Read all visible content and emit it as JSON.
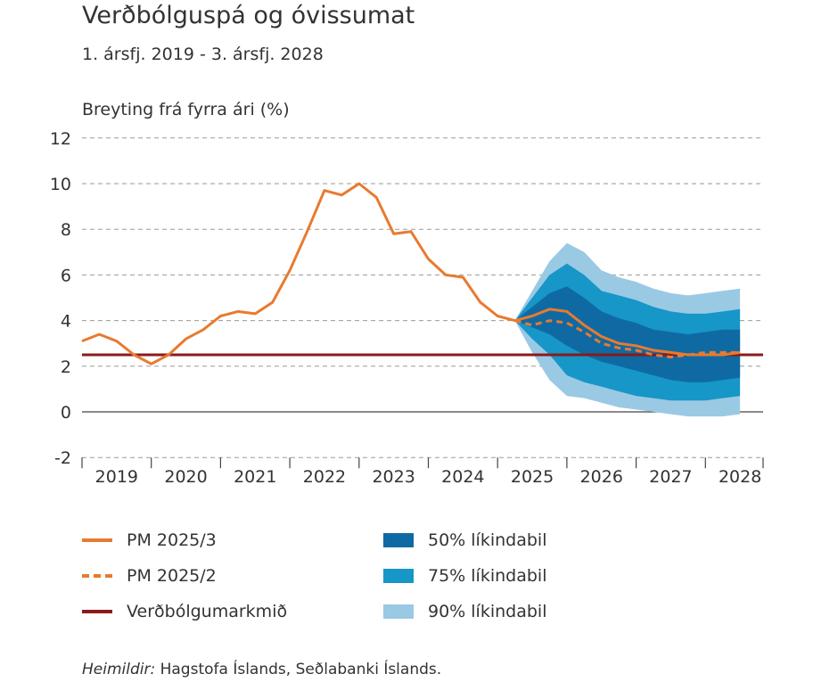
{
  "title": "Verðbólguspá og óvissumat",
  "subtitle": "1. ársfj. 2019 - 3. ársfj. 2028",
  "source": {
    "prefix": "Heimildir:",
    "text": " Hagstofa Íslands, Seðlabanki Íslands."
  },
  "legend": {
    "pm3": "PM 2025/3",
    "pm2": "PM 2025/2",
    "target": "Verðbólgumarkmið",
    "b50": "50% líkindabil",
    "b75": "75% líkindabil",
    "b90": "90% líkindabil"
  },
  "colors": {
    "pm": "#e87a30",
    "target": "#8b1a1a",
    "band50": "#0f6aa3",
    "band75": "#1796c8",
    "band90": "#9ac9e3",
    "grid": "#9a9a9a",
    "axis": "#444444"
  },
  "chart_data": {
    "type": "line",
    "ylabel": "Breyting frá fyrra ári (%)",
    "ylim": [
      -2,
      12
    ],
    "yticks": [
      -2,
      0,
      2,
      4,
      6,
      8,
      10,
      12
    ],
    "grid": true,
    "x_axis": {
      "start_year": 2019,
      "years": [
        "2019",
        "2020",
        "2021",
        "2022",
        "2023",
        "2024",
        "2025",
        "2026",
        "2027",
        "2028"
      ]
    },
    "quarters": [
      "2019Q1",
      "2019Q2",
      "2019Q3",
      "2019Q4",
      "2020Q1",
      "2020Q2",
      "2020Q3",
      "2020Q4",
      "2021Q1",
      "2021Q2",
      "2021Q3",
      "2021Q4",
      "2022Q1",
      "2022Q2",
      "2022Q3",
      "2022Q4",
      "2023Q1",
      "2023Q2",
      "2023Q3",
      "2023Q4",
      "2024Q1",
      "2024Q2",
      "2024Q3",
      "2024Q4",
      "2025Q1",
      "2025Q2",
      "2025Q3",
      "2025Q4",
      "2026Q1",
      "2026Q2",
      "2026Q3",
      "2026Q4",
      "2027Q1",
      "2027Q2",
      "2027Q3",
      "2027Q4",
      "2028Q1",
      "2028Q2",
      "2028Q3"
    ],
    "series": [
      {
        "name": "PM 2025/3",
        "values": [
          3.1,
          3.4,
          3.1,
          2.5,
          2.1,
          2.5,
          3.2,
          3.6,
          4.2,
          4.4,
          4.3,
          4.8,
          6.2,
          7.9,
          9.7,
          9.5,
          10.0,
          9.4,
          7.8,
          7.9,
          6.7,
          6.0,
          5.9,
          4.8,
          4.2,
          4.0,
          4.2,
          4.5,
          4.4,
          3.8,
          3.3,
          3.0,
          2.9,
          2.7,
          2.6,
          2.5,
          2.5,
          2.5,
          2.6
        ]
      },
      {
        "name": "PM 2025/2",
        "start": "2025Q2",
        "values": [
          4.0,
          3.8,
          4.0,
          3.9,
          3.5,
          3.0,
          2.8,
          2.7,
          2.5,
          2.4,
          2.5,
          2.6,
          2.6,
          2.6
        ]
      },
      {
        "name": "Verðbólgumarkmið",
        "value": 2.5
      }
    ],
    "fan": {
      "start": "2025Q2",
      "b90_upper": [
        4.0,
        5.3,
        6.6,
        7.4,
        7.0,
        6.2,
        5.9,
        5.7,
        5.4,
        5.2,
        5.1,
        5.2,
        5.3,
        5.4
      ],
      "b75_upper": [
        4.0,
        5.0,
        6.0,
        6.5,
        6.0,
        5.3,
        5.1,
        4.9,
        4.6,
        4.4,
        4.3,
        4.3,
        4.4,
        4.5
      ],
      "b50_upper": [
        4.0,
        4.6,
        5.2,
        5.5,
        5.0,
        4.4,
        4.1,
        3.9,
        3.6,
        3.5,
        3.4,
        3.5,
        3.6,
        3.6
      ],
      "b50_lower": [
        4.0,
        3.7,
        3.4,
        2.9,
        2.5,
        2.2,
        2.0,
        1.8,
        1.6,
        1.4,
        1.3,
        1.3,
        1.4,
        1.5
      ],
      "b75_lower": [
        4.0,
        3.2,
        2.5,
        1.6,
        1.3,
        1.1,
        0.9,
        0.7,
        0.6,
        0.5,
        0.5,
        0.5,
        0.6,
        0.7
      ],
      "b90_lower": [
        4.0,
        2.6,
        1.4,
        0.7,
        0.6,
        0.4,
        0.2,
        0.1,
        0.0,
        -0.1,
        -0.2,
        -0.2,
        -0.2,
        -0.1
      ]
    }
  }
}
